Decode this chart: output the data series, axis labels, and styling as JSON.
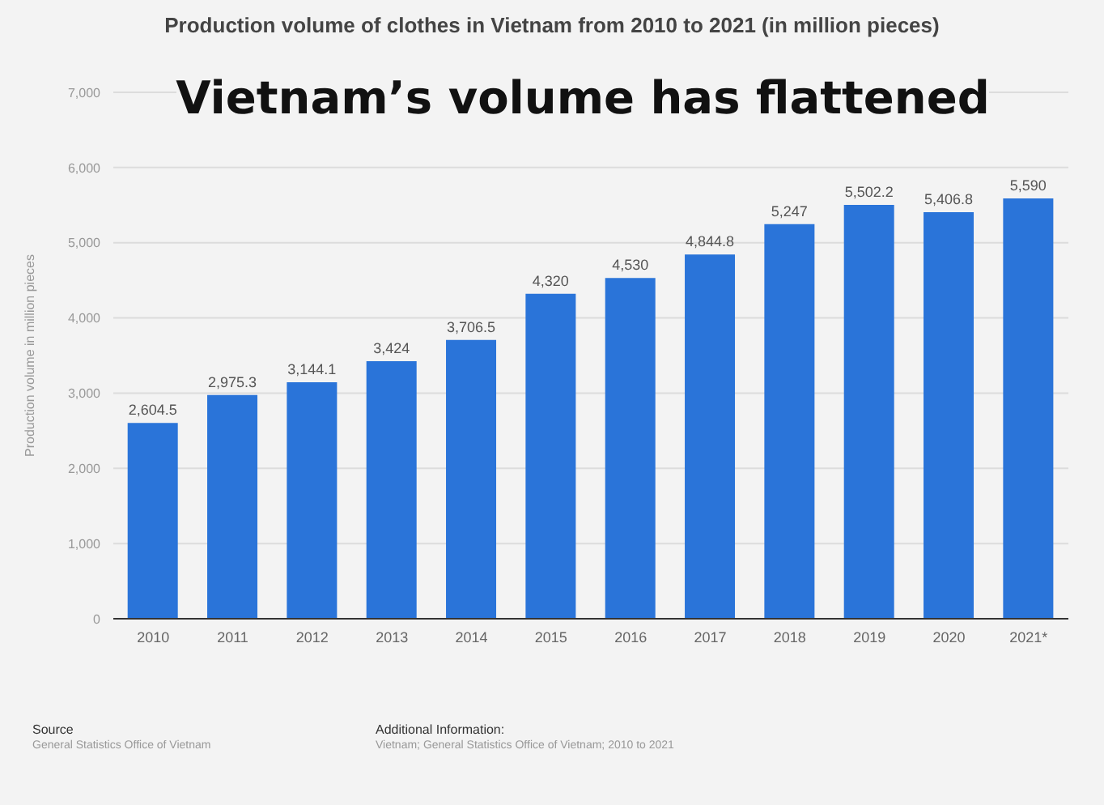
{
  "chart_data": {
    "type": "bar",
    "title": "Production volume of clothes in Vietnam from 2010 to 2021 (in million pieces)",
    "subtitle": "Vietnam’s volume has flattened",
    "ylabel": "Production volume in million pieces",
    "categories": [
      "2010",
      "2011",
      "2012",
      "2013",
      "2014",
      "2015",
      "2016",
      "2017",
      "2018",
      "2019",
      "2020",
      "2021*"
    ],
    "values": [
      2604.5,
      2975.3,
      3144.1,
      3424,
      3706.5,
      4320,
      4530,
      4844.8,
      5247,
      5502.2,
      5406.8,
      5590
    ],
    "value_labels": [
      "2,604.5",
      "2,975.3",
      "3,144.1",
      "3,424",
      "3,706.5",
      "4,320",
      "4,530",
      "4,844.8",
      "5,247",
      "5,502.2",
      "5,406.8",
      "5,590"
    ],
    "color": "#2a74d9",
    "ylim": [
      0,
      7000
    ],
    "yticks": [
      0,
      {
        "value": 1000,
        "label": "1,000"
      },
      {
        "value": 2000,
        "label": "2,000"
      },
      {
        "value": 3000,
        "label": "3,000"
      },
      {
        "value": 4000,
        "label": "4,000"
      },
      {
        "value": 5000,
        "label": "5,000"
      },
      {
        "value": 6000,
        "label": "6,000"
      },
      {
        "value": 7000,
        "label": "7,000"
      }
    ],
    "grid": "y",
    "annotations": [
      "Source",
      "General Statistics Office of Vietnam",
      "Additional Information:",
      "Vietnam; General Statistics Office of Vietnam; 2010 to 2021"
    ]
  }
}
